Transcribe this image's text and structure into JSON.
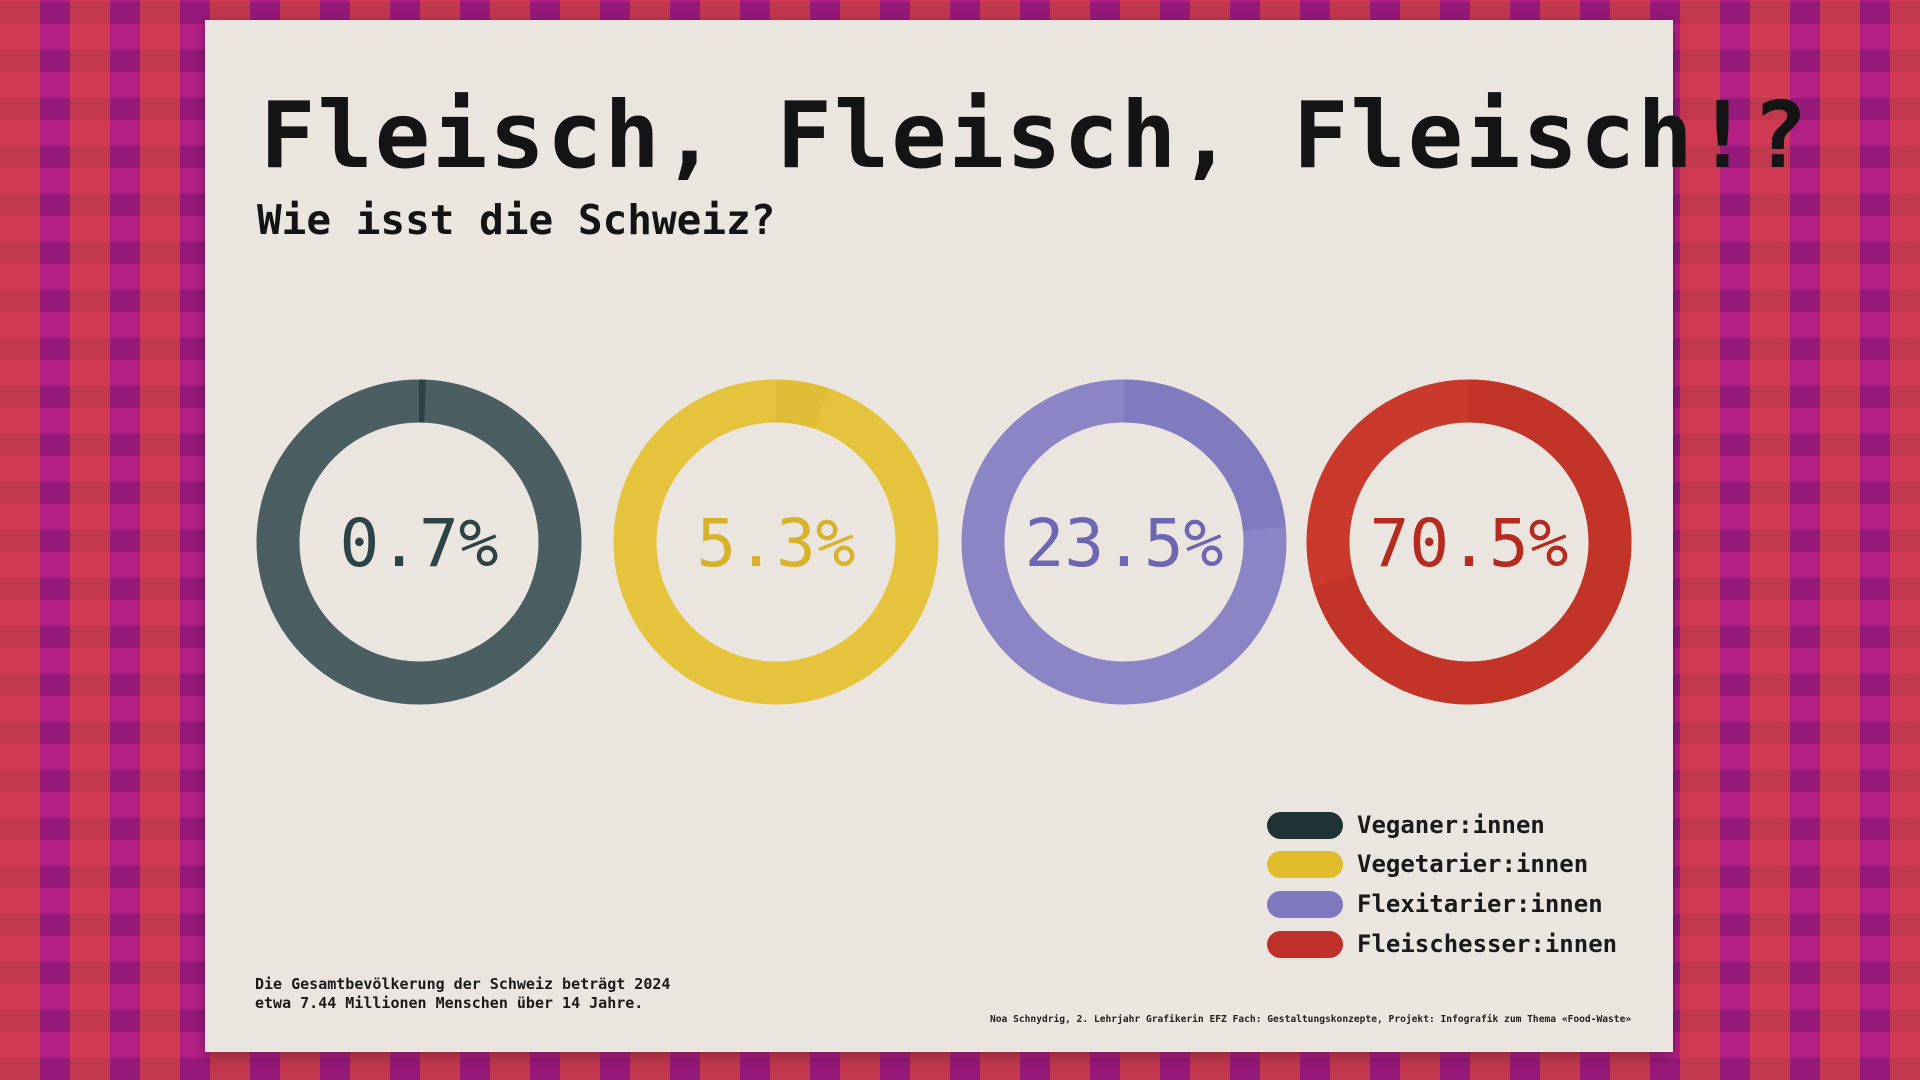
{
  "title": "Fleisch, Fleisch, Fleisch!?",
  "subtitle": "Wie isst die Schweiz?",
  "chart_data": {
    "type": "pie",
    "style": "donut",
    "title": "Fleisch, Fleisch, Fleisch!?",
    "subtitle": "Wie isst die Schweiz?",
    "categories": [
      "Veganer:innen",
      "Vegetarier:innen",
      "Flexitarier:innen",
      "Fleischesser:innen"
    ],
    "values": [
      0.7,
      5.3,
      23.5,
      70.5
    ],
    "labels": [
      "0.7%",
      "5.3%",
      "23.5%",
      "70.5%"
    ],
    "colors": [
      "#4b5f63",
      "#e5c33d",
      "#8b85c6",
      "#c9392c"
    ],
    "accent_colors": [
      "#2e4347",
      "#d8b22a",
      "#6d66b3",
      "#b52b20"
    ],
    "legend_position": "bottom-right"
  },
  "legend": [
    "Veganer:innen",
    "Vegetarier:innen",
    "Flexitarier:innen",
    "Fleischesser:innen"
  ],
  "note": [
    "Die Gesamtbevölkerung der Schweiz beträgt 2024",
    "etwa 7.44 Millionen Menschen über 14 Jahre."
  ],
  "credit": "Noa Schnydrig, 2. Lehrjahr Grafikerin EFZ Fach: Gestaltungskonzepte, Projekt: Infografik zum Thema «Food-Waste»"
}
